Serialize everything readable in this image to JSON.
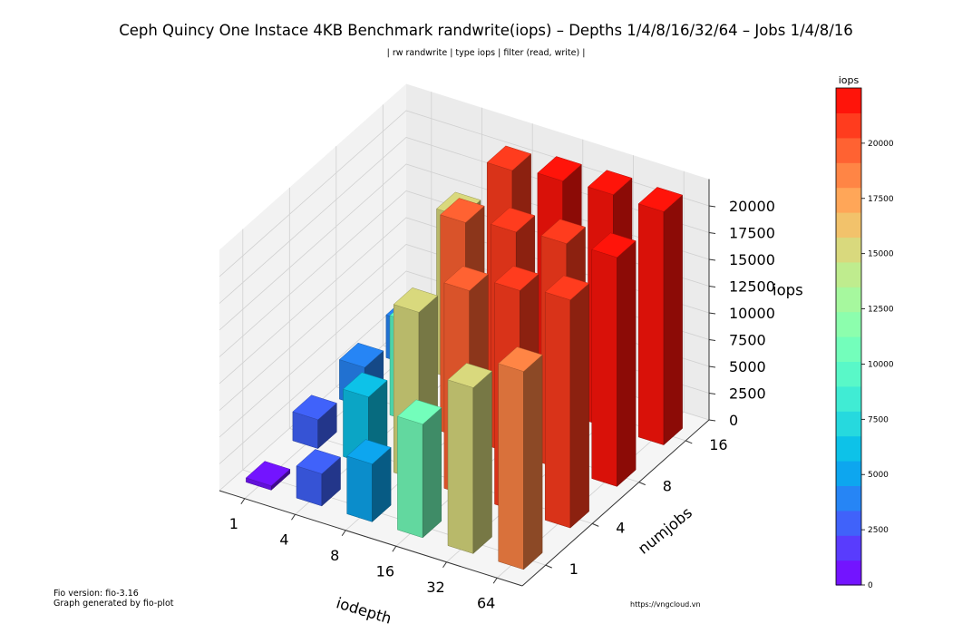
{
  "title": "Ceph Quincy One Instace 4KB Benchmark randwrite(iops) – Depths 1/4/8/16/32/64 – Jobs 1/4/8/16",
  "subtitle": "| rw randwrite | type iops | filter (read, write) |",
  "footer": {
    "version": "Fio version: fio-3.16",
    "generator": "Graph generated by fio-plot",
    "url": "https://vngcloud.vn"
  },
  "chart_data": {
    "type": "bar3d",
    "xlabel": "iodepth",
    "ylabel": "numjobs",
    "zlabel": "iops",
    "x_categories": [
      "1",
      "4",
      "8",
      "16",
      "32",
      "64"
    ],
    "y_categories": [
      "1",
      "4",
      "8",
      "16"
    ],
    "zlim": [
      0,
      22500
    ],
    "z_ticks": [
      0,
      2500,
      5000,
      7500,
      10000,
      12500,
      15000,
      17500,
      20000
    ],
    "colormap": "rainbow",
    "colorbar": {
      "label": "iops",
      "min": 0,
      "max": 22500,
      "ticks": [
        0,
        2500,
        5000,
        7500,
        10000,
        12500,
        15000,
        17500,
        20000
      ],
      "levels": 20
    },
    "grid": true,
    "values": [
      [
        400,
        2700,
        3700,
        4000
      ],
      [
        3000,
        6300,
        9300,
        15400
      ],
      [
        5400,
        15700,
        20200,
        21200
      ],
      [
        10600,
        19200,
        20800,
        21700
      ],
      [
        15500,
        20700,
        21200,
        21900
      ],
      [
        18500,
        21300,
        21400,
        21800
      ]
    ]
  }
}
